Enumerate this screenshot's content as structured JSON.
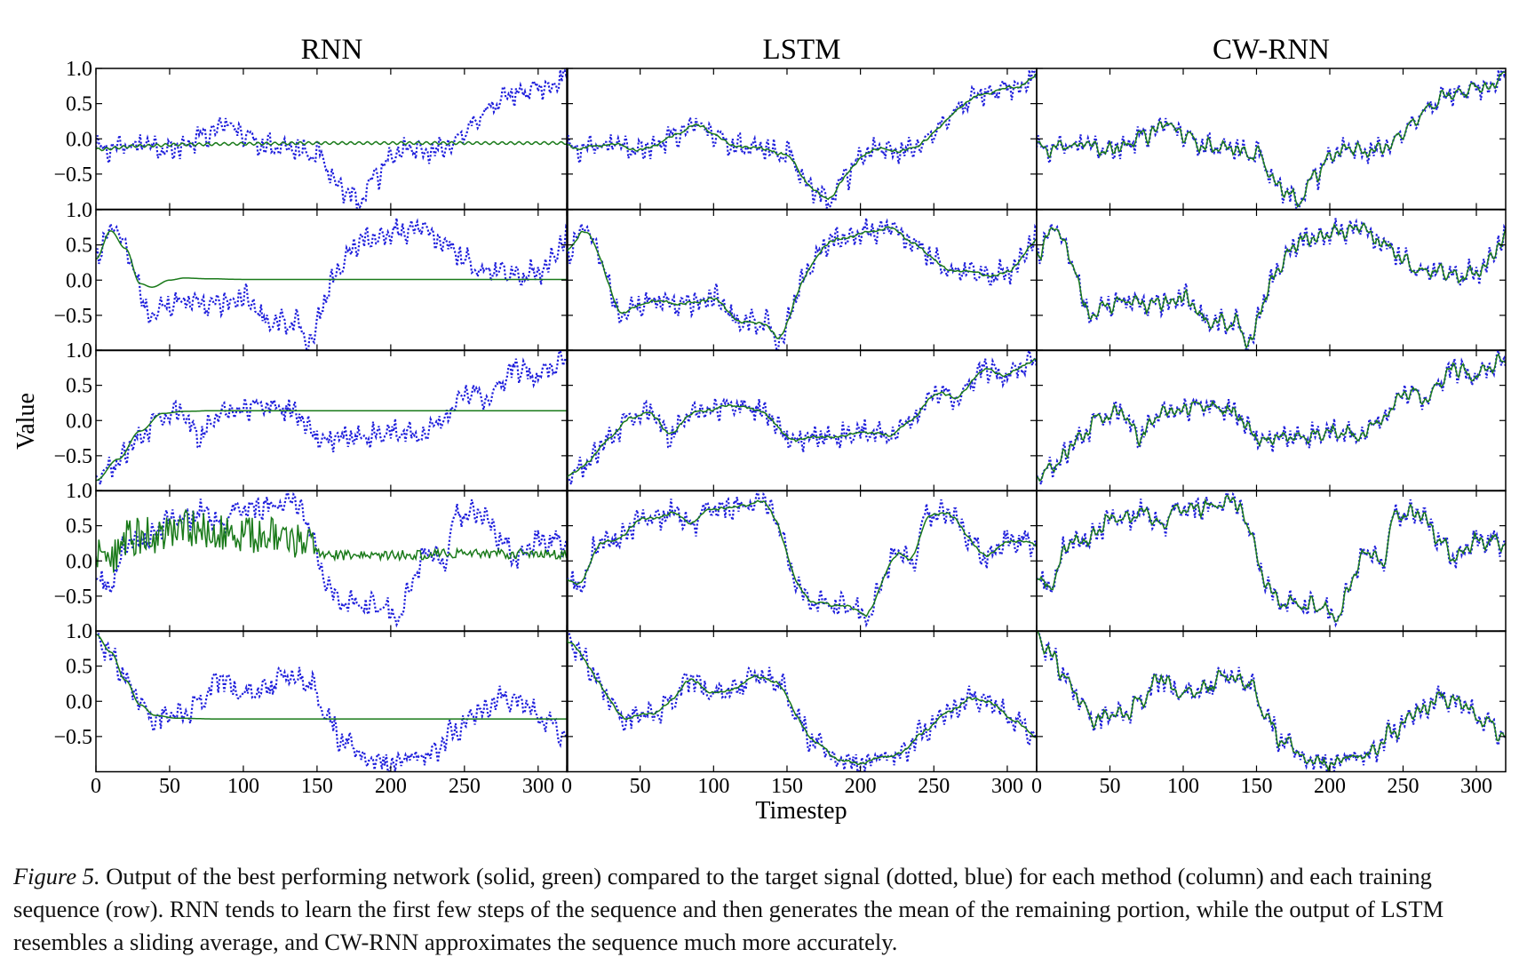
{
  "caption": {
    "label": "Figure 5.",
    "text": "Output of the best performing network (solid, green) compared to the target signal (dotted, blue) for each method (column) and each training sequence (row). RNN tends to learn the first few steps of the sequence and then generates the mean of the remaining portion, while the output of LSTM resembles a sliding average, and CW-RNN approximates the sequence much more accurately."
  },
  "chart_data": {
    "type": "line",
    "layout": "grid 5 rows x 3 columns, shared axes",
    "columns": [
      "RNN",
      "LSTM",
      "CW-RNN"
    ],
    "xlabel": "Timestep",
    "ylabel": "Value",
    "xlim": [
      0,
      320
    ],
    "ylim": [
      -1,
      1
    ],
    "xticks": [
      0,
      50,
      100,
      150,
      200,
      250,
      300
    ],
    "yticks": [
      -0.5,
      0.0,
      0.5,
      1.0
    ],
    "ytick_labels": [
      "−0.5",
      "0.0",
      "0.5",
      "1.0"
    ],
    "grid": false,
    "series_styles": {
      "output": {
        "style": "solid",
        "color": "#1a7a1a"
      },
      "target": {
        "style": "dotted",
        "color": "#1f1fdc"
      }
    },
    "rows": [
      {
        "target_keypoints": [
          [
            0,
            -0.15
          ],
          [
            20,
            -0.12
          ],
          [
            35,
            -0.05
          ],
          [
            50,
            -0.15
          ],
          [
            60,
            -0.1
          ],
          [
            75,
            0.05
          ],
          [
            90,
            0.2
          ],
          [
            100,
            0.1
          ],
          [
            110,
            -0.05
          ],
          [
            125,
            -0.1
          ],
          [
            140,
            -0.15
          ],
          [
            150,
            -0.2
          ],
          [
            160,
            -0.5
          ],
          [
            170,
            -0.75
          ],
          [
            180,
            -0.9
          ],
          [
            190,
            -0.55
          ],
          [
            200,
            -0.3
          ],
          [
            210,
            -0.15
          ],
          [
            225,
            -0.2
          ],
          [
            240,
            -0.1
          ],
          [
            250,
            0.1
          ],
          [
            260,
            0.3
          ],
          [
            270,
            0.5
          ],
          [
            285,
            0.65
          ],
          [
            300,
            0.7
          ],
          [
            310,
            0.75
          ],
          [
            320,
            1.0
          ]
        ],
        "outputs": {
          "RNN": [
            [
              0,
              -0.15
            ],
            [
              30,
              -0.1
            ],
            [
              60,
              -0.08
            ],
            [
              100,
              -0.07
            ],
            [
              150,
              -0.06
            ],
            [
              200,
              -0.06
            ],
            [
              320,
              -0.06
            ]
          ]
        }
      },
      {
        "target_keypoints": [
          [
            0,
            0.25
          ],
          [
            8,
            0.7
          ],
          [
            15,
            0.65
          ],
          [
            25,
            0.2
          ],
          [
            35,
            -0.5
          ],
          [
            45,
            -0.35
          ],
          [
            60,
            -0.3
          ],
          [
            80,
            -0.35
          ],
          [
            100,
            -0.25
          ],
          [
            115,
            -0.55
          ],
          [
            125,
            -0.6
          ],
          [
            135,
            -0.6
          ],
          [
            145,
            -0.9
          ],
          [
            155,
            -0.3
          ],
          [
            165,
            0.2
          ],
          [
            175,
            0.5
          ],
          [
            190,
            0.6
          ],
          [
            205,
            0.7
          ],
          [
            220,
            0.75
          ],
          [
            235,
            0.55
          ],
          [
            250,
            0.3
          ],
          [
            260,
            0.15
          ],
          [
            280,
            0.1
          ],
          [
            300,
            0.1
          ],
          [
            320,
            0.6
          ]
        ],
        "outputs": {
          "RNN": [
            [
              0,
              0.3
            ],
            [
              10,
              0.7
            ],
            [
              20,
              0.45
            ],
            [
              30,
              -0.05
            ],
            [
              38,
              -0.1
            ],
            [
              50,
              0.0
            ],
            [
              60,
              0.03
            ],
            [
              75,
              0.02
            ],
            [
              100,
              0.01
            ],
            [
              200,
              0.01
            ],
            [
              320,
              0.01
            ]
          ]
        }
      },
      {
        "target_keypoints": [
          [
            0,
            -0.85
          ],
          [
            15,
            -0.6
          ],
          [
            30,
            -0.2
          ],
          [
            45,
            0.1
          ],
          [
            55,
            0.15
          ],
          [
            65,
            -0.1
          ],
          [
            70,
            -0.25
          ],
          [
            80,
            0.05
          ],
          [
            100,
            0.2
          ],
          [
            120,
            0.2
          ],
          [
            135,
            0.15
          ],
          [
            145,
            -0.1
          ],
          [
            150,
            -0.25
          ],
          [
            170,
            -0.25
          ],
          [
            190,
            -0.2
          ],
          [
            205,
            -0.15
          ],
          [
            220,
            -0.2
          ],
          [
            235,
            0.0
          ],
          [
            245,
            0.3
          ],
          [
            255,
            0.45
          ],
          [
            265,
            0.3
          ],
          [
            275,
            0.55
          ],
          [
            285,
            0.75
          ],
          [
            300,
            0.6
          ],
          [
            310,
            0.8
          ],
          [
            320,
            0.9
          ]
        ],
        "outputs": {
          "RNN": [
            [
              0,
              -0.85
            ],
            [
              15,
              -0.55
            ],
            [
              30,
              -0.15
            ],
            [
              45,
              0.1
            ],
            [
              60,
              0.13
            ],
            [
              80,
              0.14
            ],
            [
              320,
              0.14
            ]
          ]
        }
      },
      {
        "target_keypoints": [
          [
            0,
            -0.3
          ],
          [
            10,
            -0.35
          ],
          [
            20,
            0.25
          ],
          [
            35,
            0.3
          ],
          [
            50,
            0.55
          ],
          [
            60,
            0.6
          ],
          [
            75,
            0.7
          ],
          [
            85,
            0.5
          ],
          [
            95,
            0.8
          ],
          [
            110,
            0.75
          ],
          [
            125,
            0.8
          ],
          [
            135,
            0.85
          ],
          [
            145,
            0.5
          ],
          [
            155,
            -0.3
          ],
          [
            170,
            -0.6
          ],
          [
            185,
            -0.65
          ],
          [
            195,
            -0.65
          ],
          [
            205,
            -0.8
          ],
          [
            215,
            -0.3
          ],
          [
            225,
            0.2
          ],
          [
            235,
            -0.1
          ],
          [
            245,
            0.65
          ],
          [
            260,
            0.7
          ],
          [
            275,
            0.3
          ],
          [
            285,
            0.05
          ],
          [
            300,
            0.3
          ],
          [
            320,
            0.25
          ]
        ],
        "outputs": {
          "RNN": [
            [
              0,
              0.1
            ],
            [
              10,
              0.0
            ],
            [
              20,
              0.35
            ],
            [
              35,
              0.35
            ],
            [
              55,
              0.45
            ],
            [
              75,
              0.45
            ],
            [
              95,
              0.35
            ],
            [
              115,
              0.35
            ],
            [
              130,
              0.3
            ],
            [
              140,
              0.3
            ],
            [
              150,
              0.1
            ],
            [
              170,
              0.08
            ],
            [
              200,
              0.08
            ],
            [
              250,
              0.1
            ],
            [
              320,
              0.1
            ]
          ]
        }
      },
      {
        "target_keypoints": [
          [
            0,
            0.95
          ],
          [
            10,
            0.65
          ],
          [
            20,
            0.35
          ],
          [
            30,
            -0.05
          ],
          [
            40,
            -0.25
          ],
          [
            50,
            -0.25
          ],
          [
            60,
            -0.2
          ],
          [
            70,
            0.0
          ],
          [
            85,
            0.3
          ],
          [
            100,
            0.15
          ],
          [
            115,
            0.2
          ],
          [
            130,
            0.35
          ],
          [
            145,
            0.3
          ],
          [
            155,
            -0.2
          ],
          [
            170,
            -0.6
          ],
          [
            185,
            -0.85
          ],
          [
            200,
            -0.9
          ],
          [
            215,
            -0.8
          ],
          [
            230,
            -0.7
          ],
          [
            245,
            -0.4
          ],
          [
            260,
            -0.15
          ],
          [
            275,
            0.05
          ],
          [
            290,
            -0.05
          ],
          [
            305,
            -0.3
          ],
          [
            320,
            -0.45
          ]
        ],
        "outputs": {
          "RNN": [
            [
              0,
              0.95
            ],
            [
              10,
              0.7
            ],
            [
              20,
              0.3
            ],
            [
              30,
              -0.05
            ],
            [
              40,
              -0.2
            ],
            [
              55,
              -0.24
            ],
            [
              80,
              -0.25
            ],
            [
              320,
              -0.25
            ]
          ]
        }
      }
    ]
  }
}
